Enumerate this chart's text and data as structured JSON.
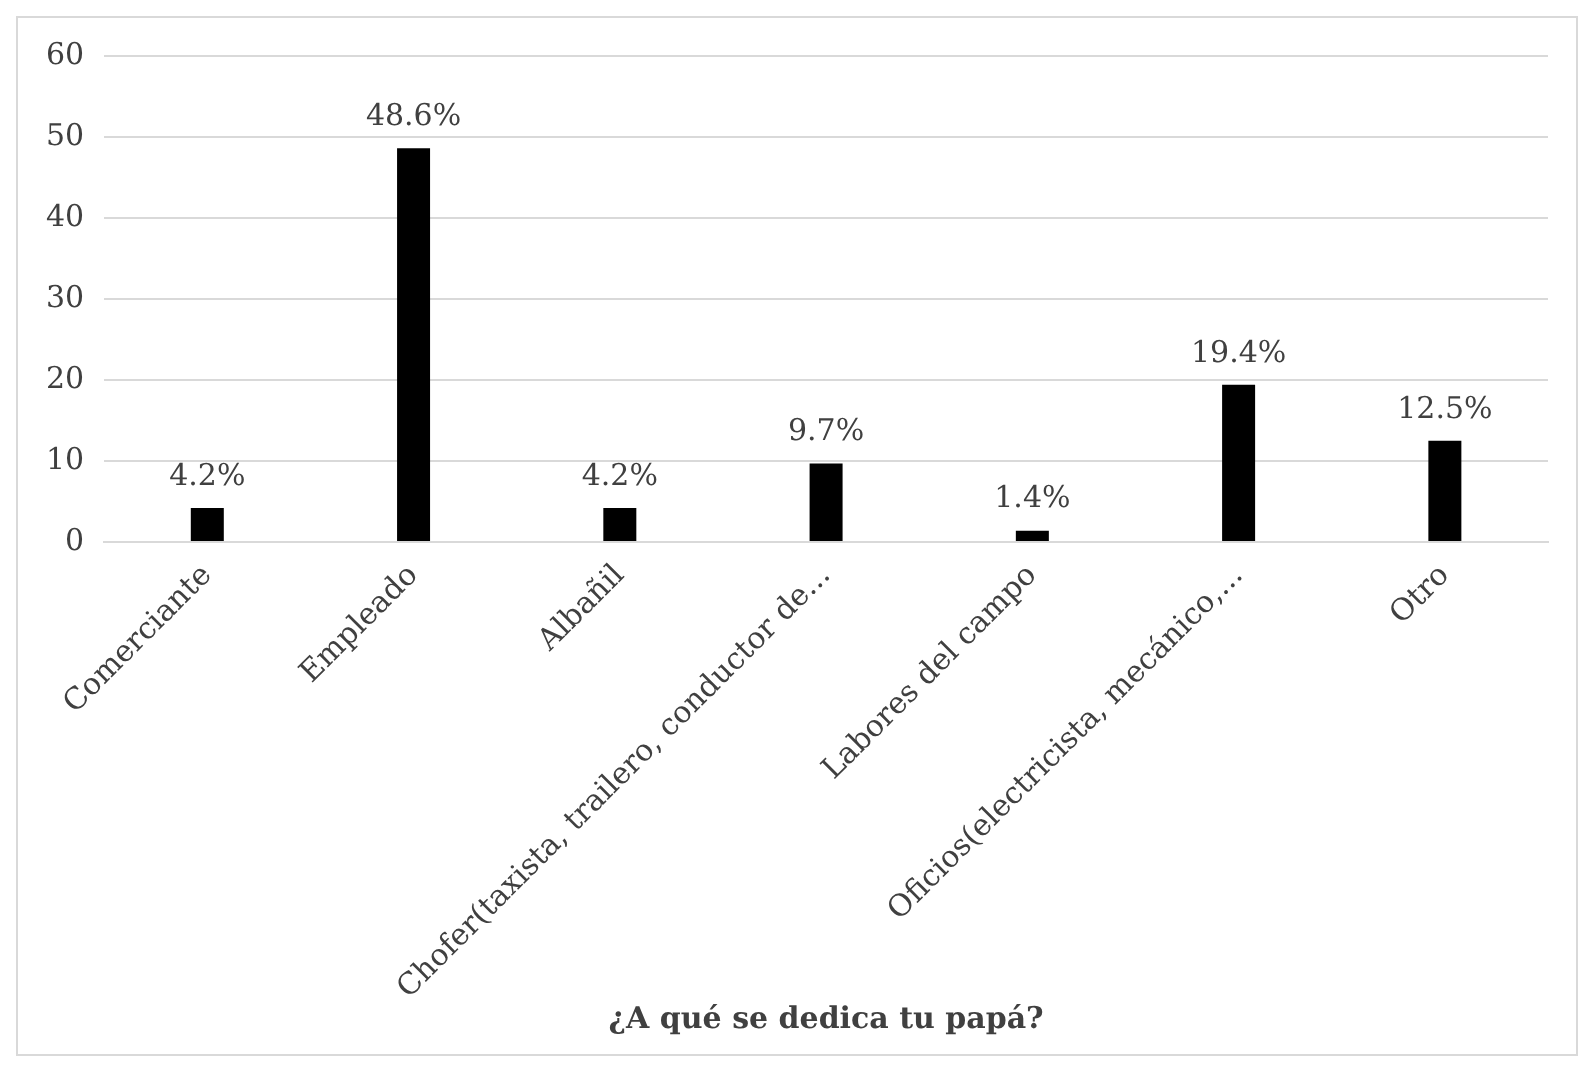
{
  "chart_data": {
    "type": "bar",
    "xlabel": "¿A qué se dedica tu papá?",
    "categories": [
      "Comerciante",
      "Empleado",
      "Albañil",
      "Chofer(taxista, trailero, conductor de...",
      "Labores del campo",
      "Oficios(electricista, mecánico,...",
      "Otro"
    ],
    "values": [
      4.2,
      48.6,
      4.2,
      9.7,
      1.4,
      19.4,
      12.5
    ],
    "value_labels": [
      "4.2%",
      "48.6%",
      "4.2%",
      "9.7%",
      "1.4%",
      "19.4%",
      "12.5%"
    ],
    "color": "#000000",
    "ylim": [
      0,
      60
    ],
    "yticks": [
      0,
      10,
      20,
      30,
      40,
      50,
      60
    ],
    "grid": "y",
    "legend": false
  }
}
